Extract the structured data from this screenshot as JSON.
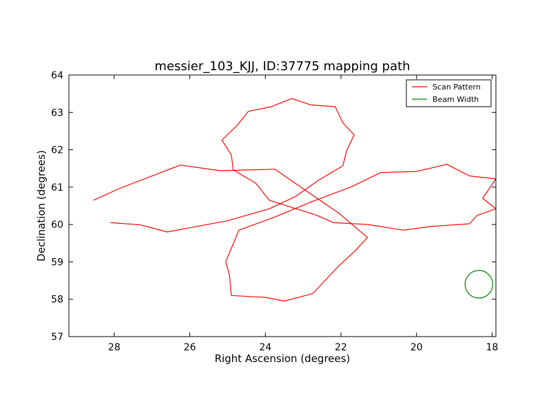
{
  "chart_data": {
    "type": "line",
    "title": "messier_103_KJJ, ID:37775 mapping path",
    "xlabel": "Right Ascension (degrees)",
    "ylabel": "Declination (degrees)",
    "xlim": [
      29.2,
      17.9
    ],
    "ylim": [
      57,
      64
    ],
    "x_inverted": true,
    "xticks": [
      28,
      26,
      24,
      22,
      20,
      18
    ],
    "yticks": [
      57,
      58,
      59,
      60,
      61,
      62,
      63,
      64
    ],
    "grid": false,
    "legend_position": "top-right",
    "series": [
      {
        "name": "Scan Pattern",
        "color": "#ff0000",
        "points": [
          [
            28.55,
            60.65
          ],
          [
            27.85,
            60.97
          ],
          [
            26.25,
            61.59
          ],
          [
            25.2,
            61.44
          ],
          [
            23.75,
            61.48
          ],
          [
            22.75,
            60.78
          ],
          [
            22.05,
            60.3
          ],
          [
            21.3,
            59.65
          ],
          [
            21.65,
            59.27
          ],
          [
            22.05,
            58.9
          ],
          [
            22.75,
            58.15
          ],
          [
            23.5,
            57.95
          ],
          [
            24.0,
            58.05
          ],
          [
            24.9,
            58.1
          ],
          [
            24.95,
            58.65
          ],
          [
            25.05,
            59.0
          ],
          [
            24.7,
            59.85
          ],
          [
            23.75,
            60.2
          ],
          [
            22.8,
            60.6
          ],
          [
            21.75,
            61.0
          ],
          [
            20.95,
            61.39
          ],
          [
            20.0,
            61.42
          ],
          [
            19.2,
            61.61
          ],
          [
            18.6,
            61.3
          ],
          [
            17.9,
            61.22
          ],
          [
            18.25,
            60.7
          ],
          [
            17.9,
            60.42
          ],
          [
            18.4,
            60.24
          ],
          [
            18.6,
            60.02
          ],
          [
            19.6,
            59.95
          ],
          [
            20.35,
            59.85
          ],
          [
            21.3,
            60.0
          ],
          [
            22.2,
            60.05
          ],
          [
            22.65,
            60.25
          ],
          [
            23.9,
            60.65
          ],
          [
            24.25,
            61.1
          ],
          [
            24.85,
            61.46
          ],
          [
            24.9,
            61.86
          ],
          [
            25.15,
            62.26
          ],
          [
            24.75,
            62.65
          ],
          [
            24.45,
            63.03
          ],
          [
            23.85,
            63.15
          ],
          [
            23.3,
            63.37
          ],
          [
            22.8,
            63.2
          ],
          [
            22.15,
            63.15
          ],
          [
            21.95,
            62.72
          ],
          [
            21.65,
            62.4
          ],
          [
            21.85,
            61.98
          ],
          [
            21.95,
            61.57
          ],
          [
            22.6,
            61.18
          ],
          [
            23.2,
            60.75
          ],
          [
            23.9,
            60.42
          ],
          [
            25.0,
            60.1
          ],
          [
            25.7,
            59.97
          ],
          [
            26.6,
            59.8
          ],
          [
            27.3,
            59.99
          ],
          [
            28.1,
            60.05
          ]
        ]
      },
      {
        "name": "Beam Width",
        "color": "#008000",
        "circle": {
          "center": [
            18.35,
            58.4
          ],
          "radius_deg": 0.37
        }
      }
    ]
  }
}
